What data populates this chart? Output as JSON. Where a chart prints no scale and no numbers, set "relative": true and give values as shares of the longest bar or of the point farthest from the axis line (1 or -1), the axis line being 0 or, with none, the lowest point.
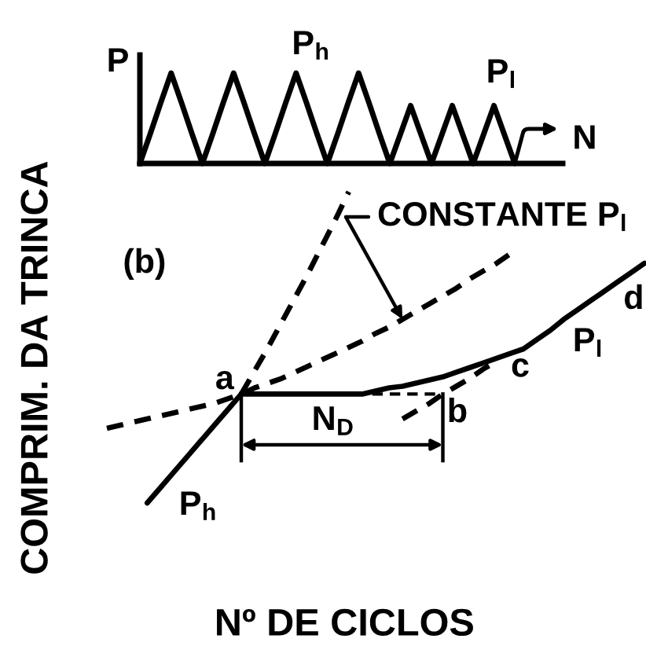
{
  "chart_data": [
    {
      "type": "line",
      "relative": true,
      "xlabel": "N",
      "ylabel": "P",
      "categories": [
        null,
        null,
        null,
        null,
        null,
        null,
        null,
        null,
        null,
        null,
        null,
        null,
        null,
        null,
        null,
        null,
        null,
        null,
        null,
        null,
        null,
        null,
        null,
        null,
        null,
        null,
        null,
        null,
        null,
        null,
        null,
        null,
        null,
        null,
        null,
        null,
        null,
        null,
        null,
        null,
        null
      ],
      "series": [
        {
          "color": "#000000",
          "values": [
            0,
            0.33,
            0.67,
            1,
            0.67,
            0.33,
            0,
            0.33,
            0.67,
            1,
            0.67,
            0.33,
            0,
            0.33,
            0.67,
            1,
            0.67,
            0.33,
            0,
            0.33,
            0.67,
            1,
            0.67,
            0.33,
            0,
            0.32,
            0.64,
            0.32,
            0,
            0.32,
            0.64,
            0.32,
            0,
            0.32,
            0.64,
            0.32,
            0,
            null,
            null,
            null,
            null
          ]
        }
      ],
      "annotations": [
        "P$_{h}$",
        "P$_{l}$"
      ]
    },
    {
      "type": "line",
      "relative": true,
      "xlabel": "Nº DE CICLOS",
      "ylabel": "COMPRIM. DA TRINCA",
      "categories": [
        null,
        null,
        null,
        null,
        null,
        null,
        null,
        null,
        null,
        null,
        null,
        null,
        null,
        null,
        null,
        null,
        null,
        null,
        null,
        null,
        null,
        null,
        null,
        null,
        null,
        null,
        null,
        null,
        null,
        null,
        null,
        null,
        null,
        null,
        null,
        null,
        null,
        null,
        null,
        null,
        null
      ],
      "series": [
        {
          "color": "#000000",
          "values": [
            null,
            null,
            null,
            0,
            0.05,
            0.1,
            0.15,
            0.2,
            0.25,
            0.3,
            0.35,
            null,
            null,
            null,
            null,
            null,
            null,
            null,
            null,
            null,
            null,
            null,
            null,
            null,
            null,
            null,
            null,
            null,
            null,
            null,
            null,
            null,
            null,
            null,
            null,
            null,
            null,
            null,
            null,
            null,
            null
          ]
        },
        {
          "color": "#000000",
          "line_style": "dashed",
          "values": [
            null,
            null,
            null,
            null,
            null,
            null,
            null,
            null,
            null,
            null,
            0.35,
            0.425,
            0.5,
            0.58,
            0.66,
            0.74,
            0.825,
            0.91,
            1,
            null,
            null,
            null,
            null,
            null,
            null,
            null,
            null,
            null,
            null,
            null,
            null,
            null,
            null,
            null,
            null,
            null,
            null,
            null,
            null,
            null,
            null
          ]
        },
        {
          "color": "#000000",
          "line_style": "dashed",
          "values": [
            0.24,
            0.25,
            0.26,
            0.27,
            0.28,
            0.29,
            0.3,
            0.31,
            0.32,
            0.335,
            0.35,
            0.37,
            0.385,
            0.4,
            0.42,
            0.44,
            0.46,
            0.48,
            0.5,
            0.52,
            0.545,
            0.565,
            0.59,
            0.615,
            0.64,
            0.665,
            0.69,
            0.72,
            0.745,
            0.77,
            0.8,
            null,
            null,
            null,
            null,
            null,
            null,
            null,
            null,
            null,
            null
          ]
        },
        {
          "color": "#000000",
          "values": [
            null,
            null,
            null,
            null,
            null,
            null,
            null,
            null,
            null,
            null,
            0.35,
            0.35,
            0.35,
            0.35,
            0.35,
            0.35,
            0.35,
            0.35,
            0.35,
            0.35,
            0.36,
            0.37,
            0.375,
            0.385,
            0.395,
            0.405,
            0.42,
            0.435,
            0.45,
            0.465,
            0.48,
            0.495,
            0.525,
            0.555,
            0.59,
            0.62,
            0.65,
            0.68,
            0.71,
            0.74,
            0.77
          ]
        },
        {
          "color": "#000000",
          "line_style": "dashed",
          "values": [
            null,
            null,
            null,
            null,
            null,
            null,
            null,
            null,
            null,
            null,
            null,
            null,
            null,
            null,
            null,
            null,
            null,
            null,
            null,
            null,
            null,
            null,
            0.27,
            0.295,
            0.32,
            0.35,
            0.375,
            0.4,
            0.43,
            0.455,
            null,
            null,
            null,
            null,
            null,
            null,
            null,
            null,
            null,
            null,
            null
          ]
        }
      ],
      "annotations": [
        "(b)",
        "a",
        "b",
        "c",
        "d",
        "P$_{h}$",
        "P$_{l}$",
        "CONSTANTE P$_{l}$",
        "N$_{D}$"
      ]
    }
  ]
}
